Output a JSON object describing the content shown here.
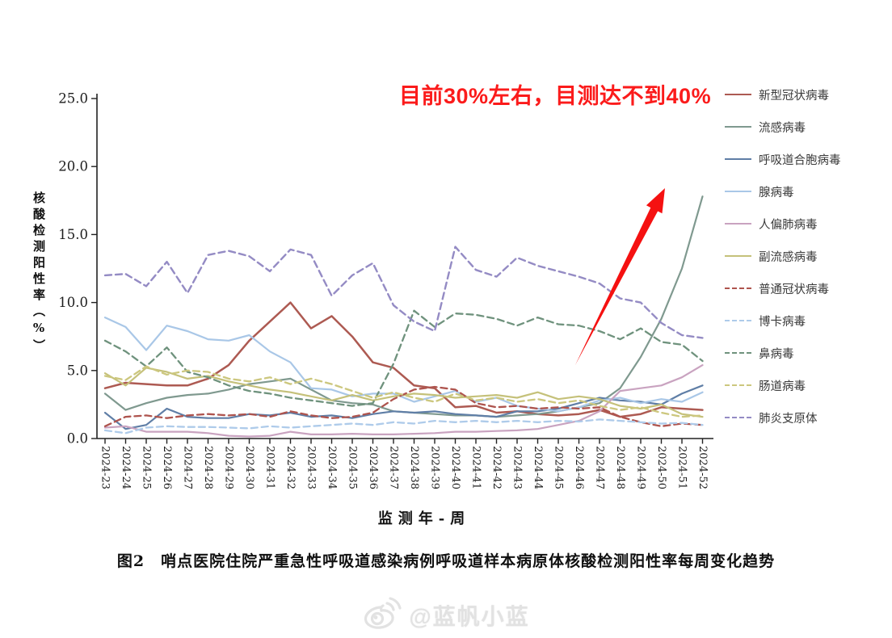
{
  "annotation": {
    "text": "目前30%左右，目测达不到40%",
    "color": "#fb1b1b"
  },
  "axis": {
    "y_title": "核酸检测阳性率（%）",
    "x_title": "监测年-周"
  },
  "caption": {
    "text": "图2　哨点医院住院严重急性呼吸道感染病例呼吸道样本病原体核酸检测阳性率每周变化趋势"
  },
  "watermark": {
    "icon": "weibo-icon",
    "handle": "@蓝帆小蓝"
  },
  "arrow_color": "#f51111",
  "chart_data": {
    "type": "line",
    "xlabel": "监测年-周",
    "ylabel": "核酸检测阳性率（%）",
    "ylim": [
      0,
      25
    ],
    "grid": false,
    "legend_position": "right",
    "y_ticks": [
      "0.0",
      "5.0",
      "10.0",
      "15.0",
      "20.0",
      "25.0"
    ],
    "x_labels": [
      "2024-23",
      "2024-24",
      "2024-25",
      "2024-26",
      "2024-27",
      "2024-28",
      "2024-29",
      "2024-30",
      "2024-31",
      "2024-32",
      "2024-33",
      "2024-34",
      "2024-35",
      "2024-36",
      "2024-37",
      "2024-38",
      "2024-39",
      "2024-40",
      "2024-41",
      "2024-42",
      "2024-43",
      "2024-44",
      "2024-45",
      "2024-46",
      "2024-47",
      "2024-48",
      "2024-49",
      "2024-50",
      "2024-51",
      "2024-52"
    ],
    "series": [
      {
        "name": "新型冠状病毒",
        "color": "#ad5a52",
        "dash": "solid",
        "width": 2.5,
        "values": [
          3.7,
          4.1,
          4.0,
          3.9,
          3.9,
          4.4,
          5.4,
          7.2,
          8.6,
          10.0,
          8.1,
          9.0,
          7.5,
          5.6,
          5.2,
          3.9,
          3.7,
          2.3,
          2.4,
          1.9,
          2.0,
          1.8,
          1.7,
          1.8,
          2.1,
          1.6,
          1.8,
          2.3,
          2.2,
          2.1
        ]
      },
      {
        "name": "流感病毒",
        "color": "#7f998f",
        "dash": "solid",
        "width": 2.2,
        "values": [
          3.3,
          2.1,
          2.6,
          3.0,
          3.2,
          3.3,
          3.6,
          4.0,
          4.2,
          4.4,
          3.6,
          2.8,
          2.6,
          2.5,
          2.0,
          1.9,
          1.8,
          1.7,
          1.7,
          1.6,
          1.7,
          1.8,
          2.0,
          2.3,
          2.6,
          3.7,
          6.0,
          8.8,
          12.5,
          17.8
        ]
      },
      {
        "name": "呼吸道合胞病毒",
        "color": "#5f7ea6",
        "dash": "solid",
        "width": 2.2,
        "values": [
          1.9,
          0.7,
          1.0,
          2.2,
          1.6,
          1.5,
          1.5,
          1.8,
          1.7,
          1.9,
          1.6,
          1.7,
          1.5,
          1.8,
          2.0,
          1.9,
          2.0,
          1.8,
          1.7,
          1.6,
          2.0,
          2.0,
          2.2,
          2.6,
          3.0,
          2.8,
          2.7,
          2.5,
          3.3,
          3.9
        ]
      },
      {
        "name": "腺病毒",
        "color": "#a9c7e7",
        "dash": "solid",
        "width": 2.2,
        "values": [
          8.9,
          8.2,
          6.5,
          8.3,
          7.9,
          7.3,
          7.2,
          7.6,
          6.4,
          5.6,
          3.7,
          3.6,
          3.1,
          3.3,
          3.3,
          2.7,
          3.1,
          3.5,
          2.7,
          3.0,
          2.4,
          2.2,
          2.0,
          2.3,
          2.8,
          3.0,
          2.6,
          2.9,
          2.7,
          3.4
        ]
      },
      {
        "name": "人偏肺病毒",
        "color": "#c9a3c0",
        "dash": "solid",
        "width": 2.2,
        "values": [
          0.8,
          0.9,
          0.5,
          0.5,
          0.5,
          0.4,
          0.2,
          0.15,
          0.2,
          0.5,
          0.3,
          0.3,
          0.35,
          0.3,
          0.3,
          0.35,
          0.4,
          0.5,
          0.5,
          0.55,
          0.6,
          0.7,
          1.0,
          1.3,
          2.0,
          3.5,
          3.7,
          3.9,
          4.5,
          5.4
        ]
      },
      {
        "name": "副流感病毒",
        "color": "#c5c17a",
        "dash": "solid",
        "width": 2.2,
        "values": [
          4.8,
          3.9,
          5.2,
          4.9,
          4.4,
          4.6,
          4.2,
          3.9,
          3.6,
          3.4,
          3.1,
          2.8,
          3.2,
          2.8,
          3.1,
          3.3,
          3.2,
          3.0,
          3.1,
          3.2,
          3.0,
          3.4,
          2.9,
          3.1,
          2.9,
          2.4,
          2.2,
          2.5,
          1.8,
          1.6
        ]
      },
      {
        "name": "普通冠状病毒",
        "color": "#ae544e",
        "dash": "dashed",
        "width": 2.3,
        "values": [
          0.9,
          1.6,
          1.7,
          1.5,
          1.7,
          1.8,
          1.7,
          1.8,
          1.6,
          2.0,
          1.7,
          1.5,
          1.6,
          1.9,
          2.9,
          3.6,
          3.8,
          3.6,
          2.6,
          2.3,
          2.4,
          2.2,
          2.3,
          2.2,
          2.3,
          1.6,
          1.2,
          0.9,
          1.1,
          1.0
        ]
      },
      {
        "name": "博卡病毒",
        "color": "#aecbea",
        "dash": "dashed",
        "width": 2.3,
        "values": [
          0.6,
          0.4,
          0.8,
          0.9,
          0.85,
          0.85,
          0.8,
          0.75,
          0.9,
          0.8,
          0.9,
          1.0,
          1.1,
          1.0,
          1.2,
          1.1,
          1.3,
          1.2,
          1.3,
          1.2,
          1.3,
          1.2,
          1.3,
          1.25,
          1.4,
          1.3,
          1.2,
          1.1,
          1.15,
          1.0
        ]
      },
      {
        "name": "鼻病毒",
        "color": "#6f927d",
        "dash": "dashed",
        "width": 2.3,
        "values": [
          7.2,
          6.4,
          5.3,
          6.7,
          4.9,
          4.5,
          3.9,
          3.5,
          3.3,
          3.0,
          2.8,
          2.6,
          2.4,
          2.6,
          5.5,
          9.4,
          8.2,
          9.2,
          9.1,
          8.8,
          8.3,
          8.9,
          8.4,
          8.3,
          7.9,
          7.3,
          8.1,
          7.1,
          6.9,
          5.7
        ]
      },
      {
        "name": "肠道病毒",
        "color": "#ccc77e",
        "dash": "dashed",
        "width": 2.3,
        "values": [
          4.6,
          4.3,
          5.3,
          4.7,
          5.0,
          4.9,
          4.4,
          4.2,
          4.5,
          4.0,
          4.4,
          4.0,
          3.5,
          3.0,
          3.4,
          3.0,
          2.7,
          3.3,
          2.8,
          3.0,
          2.7,
          2.9,
          2.6,
          2.8,
          2.4,
          2.1,
          2.3,
          1.9,
          1.6,
          1.7
        ]
      },
      {
        "name": "肺炎支原体",
        "color": "#948bc4",
        "dash": "dashed",
        "width": 2.4,
        "values": [
          12.0,
          12.1,
          11.2,
          13.0,
          10.7,
          13.5,
          13.8,
          13.4,
          12.3,
          13.9,
          13.5,
          10.5,
          12.0,
          12.9,
          9.8,
          8.6,
          7.9,
          14.1,
          12.4,
          11.9,
          13.3,
          12.7,
          12.3,
          11.9,
          11.4,
          10.3,
          10.0,
          8.5,
          7.6,
          7.4
        ]
      }
    ]
  }
}
